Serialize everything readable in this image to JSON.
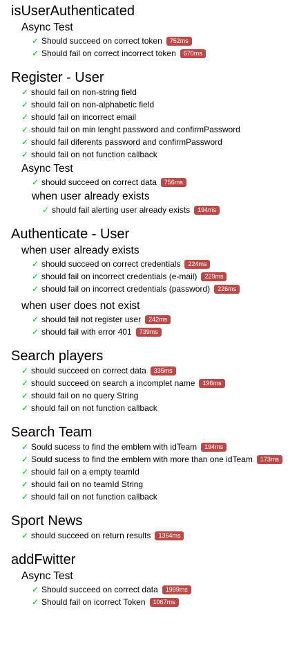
{
  "suites": [
    {
      "title": "isUserAuthenticated",
      "tests": [],
      "children": [
        {
          "title": "Async Test",
          "tests": [
            {
              "name": "Should succeed on correct token",
              "duration": "752ms"
            },
            {
              "name": "Should fail on correct incorrect token",
              "duration": "670ms"
            }
          ],
          "children": []
        }
      ]
    },
    {
      "title": "Register - User",
      "tests": [
        {
          "name": "should fail on non-string field"
        },
        {
          "name": "should fail on non-alphabetic field"
        },
        {
          "name": "should fail on incorrect email"
        },
        {
          "name": "should fail on min lenght password and confirmPassword"
        },
        {
          "name": "should fail diferents password and confirmPassword"
        },
        {
          "name": "should fail on not function callback"
        }
      ],
      "children": [
        {
          "title": "Async Test",
          "tests": [
            {
              "name": "should succeed on correct data",
              "duration": "756ms"
            }
          ],
          "children": [
            {
              "title": "when user already exists",
              "tests": [
                {
                  "name": "should fail alerting user already exists",
                  "duration": "194ms"
                }
              ]
            }
          ]
        }
      ]
    },
    {
      "title": "Authenticate - User",
      "tests": [],
      "children": [
        {
          "title": "when user already exists",
          "tests": [
            {
              "name": "should succeed on correct credentials",
              "duration": "224ms"
            },
            {
              "name": "should fail on incorrect credentials (e-mail)",
              "duration": "229ms"
            },
            {
              "name": "should fail on incorrect credentials (password)",
              "duration": "226ms"
            }
          ],
          "children": []
        },
        {
          "title": "when user does not exist",
          "tests": [
            {
              "name": "should fail not register user",
              "duration": "242ms"
            },
            {
              "name": "should fail with error 401",
              "duration": "739ms"
            }
          ],
          "children": []
        }
      ]
    },
    {
      "title": "Search players",
      "tests": [
        {
          "name": "should succeed on correct data",
          "duration": "335ms"
        },
        {
          "name": "should succeed on search a incomplet name",
          "duration": "196ms"
        },
        {
          "name": "should fail on no query String"
        },
        {
          "name": "should fail on not function callback"
        }
      ],
      "children": []
    },
    {
      "title": "Search Team",
      "tests": [
        {
          "name": "Sould sucess to find the emblem with idTeam",
          "duration": "194ms"
        },
        {
          "name": "Sould sucess to find the emblem with more than one idTeam",
          "duration": "173ms"
        },
        {
          "name": "should fail on a empty teamId"
        },
        {
          "name": "should fail on no teamId String"
        },
        {
          "name": "should fail on not function callback"
        }
      ],
      "children": []
    },
    {
      "title": "Sport News",
      "tests": [
        {
          "name": "should succeed on return results",
          "duration": "1364ms"
        }
      ],
      "children": []
    },
    {
      "title": "addFwitter",
      "tests": [],
      "children": [
        {
          "title": "Async Test",
          "tests": [
            {
              "name": "Should succeed on correct data",
              "duration": "1999ms"
            },
            {
              "name": "Should fail on icorrect Token",
              "duration": "1067ms"
            }
          ],
          "children": []
        }
      ]
    }
  ],
  "check_glyph": "✓",
  "colors": {
    "pass": "#00c41c",
    "duration_badge": "#b94a48"
  }
}
